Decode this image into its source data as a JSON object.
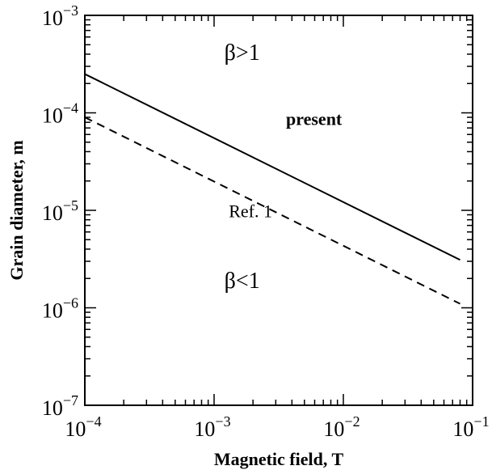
{
  "chart_data": {
    "type": "line",
    "title": "",
    "xlabel": "Magnetic field, T",
    "ylabel": "Grain diameter, m",
    "x_scale": "log",
    "y_scale": "log",
    "xlim": [
      0.0001,
      0.1
    ],
    "ylim": [
      1e-07,
      0.001
    ],
    "grid": false,
    "x_ticks": [
      {
        "base": "10",
        "exp": "−4",
        "value": 0.0001
      },
      {
        "base": "10",
        "exp": "−3",
        "value": 0.001
      },
      {
        "base": "10",
        "exp": "−2",
        "value": 0.01
      },
      {
        "base": "10",
        "exp": "−1",
        "value": 0.1
      }
    ],
    "y_ticks": [
      {
        "base": "10",
        "exp": "−7",
        "value": 1e-07
      },
      {
        "base": "10",
        "exp": "−6",
        "value": 1e-06
      },
      {
        "base": "10",
        "exp": "−5",
        "value": 1e-05
      },
      {
        "base": "10",
        "exp": "−4",
        "value": 0.0001
      },
      {
        "base": "10",
        "exp": "−3",
        "value": 0.001
      }
    ],
    "series": [
      {
        "label": "present",
        "style": "solid",
        "color": "#000000",
        "x": [
          0.0001,
          0.08
        ],
        "y": [
          0.00025,
          3.1e-06
        ]
      },
      {
        "label": "Ref. 1",
        "style": "dashed",
        "color": "#000000",
        "x": [
          0.0001,
          0.08
        ],
        "y": [
          9e-05,
          1.1e-06
        ]
      }
    ],
    "annotations": [
      {
        "text": "β>1",
        "x": 0.0012,
        "y": 0.00035,
        "size": 28
      },
      {
        "text": "present",
        "x": 0.0036,
        "y": 7.5e-05,
        "size": 22,
        "weight": "bold"
      },
      {
        "text": "Ref. 1",
        "x": 0.0013,
        "y": 8.5e-06,
        "size": 22
      },
      {
        "text": "β<1",
        "x": 0.0012,
        "y": 1.6e-06,
        "size": 28
      }
    ]
  }
}
